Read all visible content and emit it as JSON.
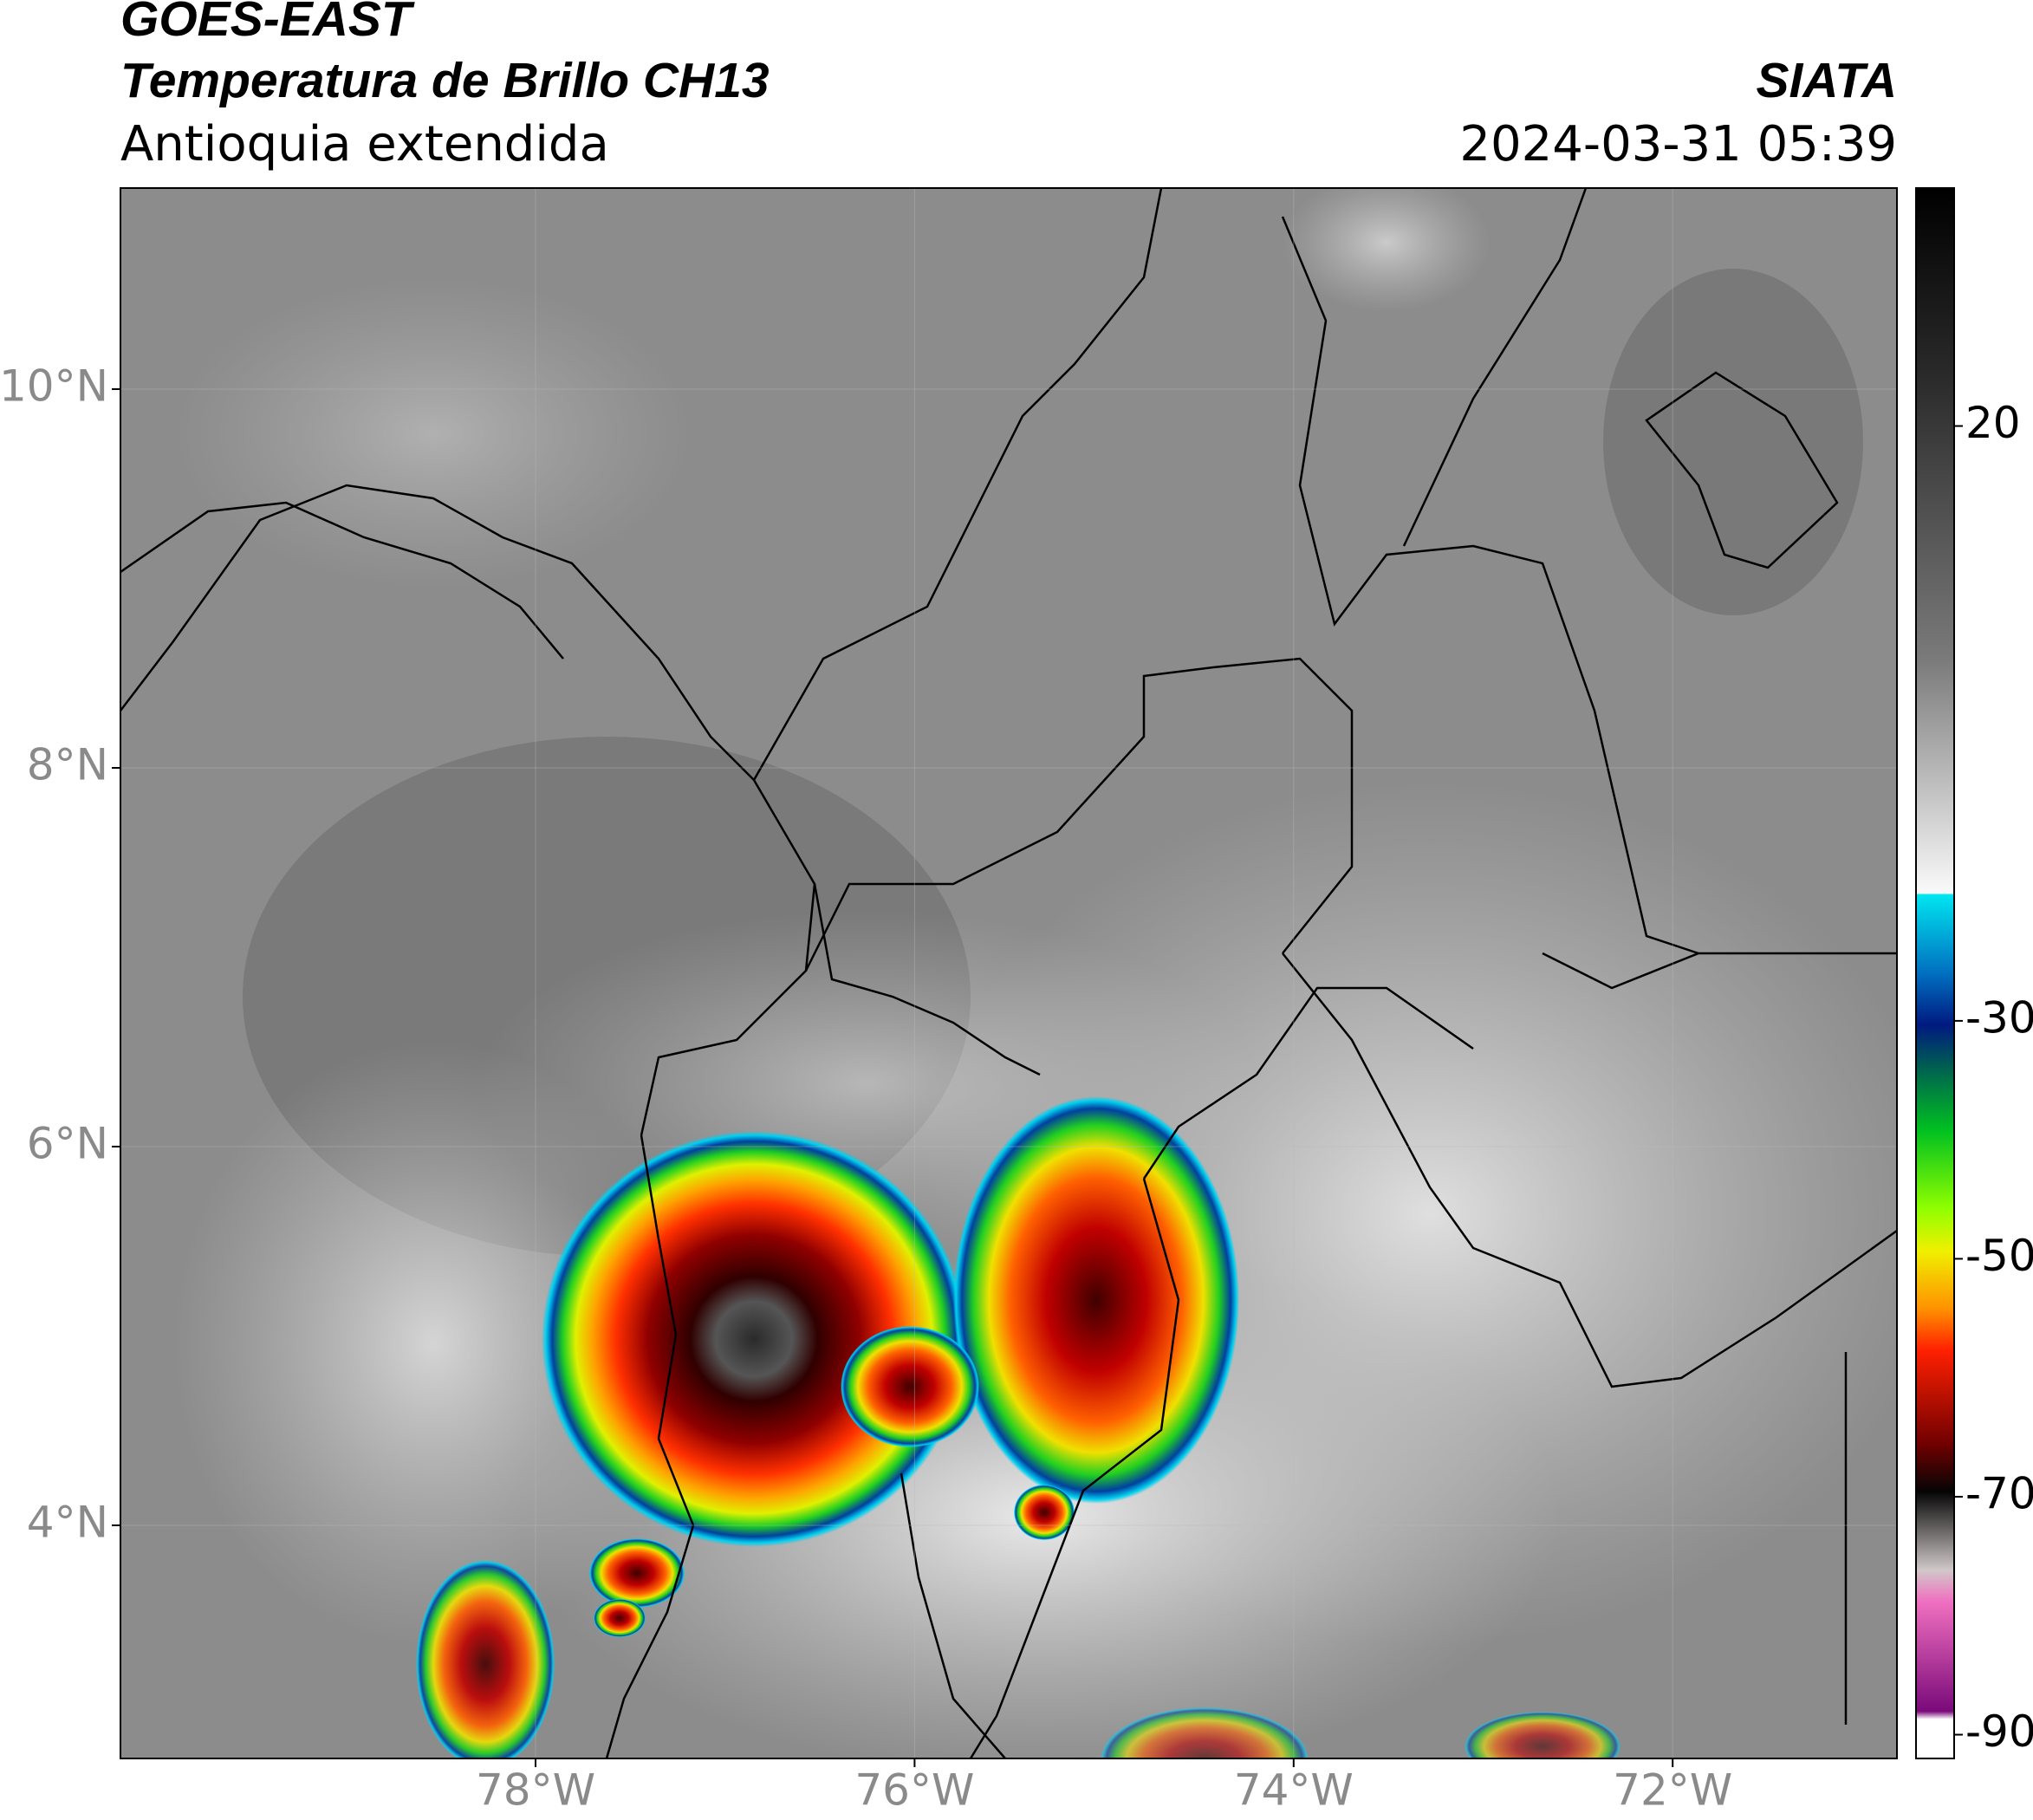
{
  "header": {
    "title_line1": "GOES-EAST",
    "title_line2": "Temperatura de Brillo CH13",
    "subtitle": "Antioquia extendida",
    "source": "SIATA",
    "datetime": "2024-03-31 05:39"
  },
  "map": {
    "lat_ticks": [
      {
        "value": 10,
        "label": "10°N"
      },
      {
        "value": 8,
        "label": "8°N"
      },
      {
        "value": 6,
        "label": "6°N"
      },
      {
        "value": 4,
        "label": "4°N"
      }
    ],
    "lon_ticks": [
      {
        "value": -78,
        "label": "78°W"
      },
      {
        "value": -76,
        "label": "76°W"
      },
      {
        "value": -74,
        "label": "74°W"
      },
      {
        "value": -72,
        "label": "72°W"
      }
    ],
    "colorbar": {
      "lim": [
        -92,
        40
      ],
      "ticks": [
        20,
        -30,
        -50,
        -70,
        -90
      ]
    }
  }
}
